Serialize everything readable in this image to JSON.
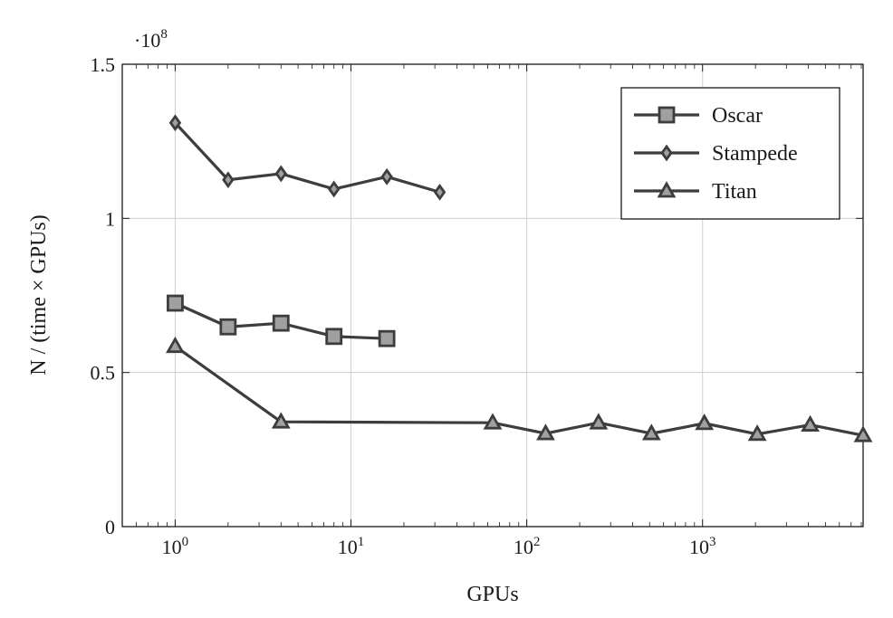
{
  "chart_data": {
    "type": "line",
    "title": "",
    "xlabel": "GPUs",
    "ylabel": "N / (time × GPUs)",
    "xscale": "log",
    "x_base": "10",
    "x_ticks": [
      {
        "value": 1,
        "exponent": "0"
      },
      {
        "value": 10,
        "exponent": "1"
      },
      {
        "value": 100,
        "exponent": "2"
      },
      {
        "value": 1000,
        "exponent": "3"
      }
    ],
    "xlim": [
      0.5,
      8192
    ],
    "y_ticks": [
      {
        "value": 0,
        "label": "0"
      },
      {
        "value": 0.5,
        "label": "0.5"
      },
      {
        "value": 1,
        "label": "1"
      },
      {
        "value": 1.5,
        "label": "1.5"
      }
    ],
    "ylim": [
      0,
      1.5
    ],
    "y_multiplier_prefix": "·10",
    "y_multiplier_exponent": "8",
    "grid": true,
    "legend_position": "top-right",
    "colors": {
      "line": "#3d3d3d",
      "marker_fill": "#a0a0a0",
      "grid": "#cfcfcf",
      "axis": "#1a1a1a"
    },
    "series": [
      {
        "name": "Oscar",
        "marker": "square",
        "x": [
          1,
          2,
          4,
          8,
          16
        ],
        "y": [
          0.725,
          0.648,
          0.66,
          0.617,
          0.61
        ]
      },
      {
        "name": "Stampede",
        "marker": "diamond",
        "x": [
          1,
          2,
          4,
          8,
          16,
          32
        ],
        "y": [
          1.31,
          1.125,
          1.145,
          1.095,
          1.135,
          1.085
        ]
      },
      {
        "name": "Titan",
        "marker": "triangle",
        "x": [
          1,
          4,
          64,
          128,
          256,
          512,
          1024,
          2048,
          4096,
          8192
        ],
        "y": [
          0.585,
          0.34,
          0.337,
          0.302,
          0.337,
          0.302,
          0.335,
          0.3,
          0.33,
          0.296
        ]
      }
    ]
  }
}
